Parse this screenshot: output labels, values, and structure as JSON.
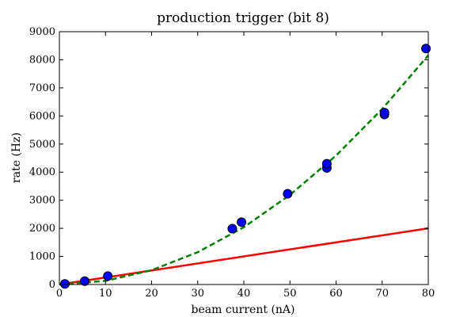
{
  "chart_data": {
    "type": "scatter",
    "title": "production trigger (bit 8)",
    "xlabel": "beam current (nA)",
    "ylabel": "rate (Hz)",
    "xlim": [
      0,
      80
    ],
    "ylim": [
      0,
      9000
    ],
    "xticks": [
      0,
      10,
      20,
      30,
      40,
      50,
      60,
      70,
      80
    ],
    "yticks": [
      0,
      1000,
      2000,
      3000,
      4000,
      5000,
      6000,
      7000,
      8000,
      9000
    ],
    "grid": false,
    "series": [
      {
        "kind": "scatter",
        "color": "#0000ff",
        "points": [
          {
            "x": 1.2,
            "y": 20
          },
          {
            "x": 5.5,
            "y": 120
          },
          {
            "x": 10.5,
            "y": 300
          },
          {
            "x": 37.5,
            "y": 1990
          },
          {
            "x": 39.5,
            "y": 2220
          },
          {
            "x": 49.5,
            "y": 3230
          },
          {
            "x": 58.0,
            "y": 4150
          },
          {
            "x": 58.0,
            "y": 4300
          },
          {
            "x": 70.5,
            "y": 6050
          },
          {
            "x": 70.5,
            "y": 6120
          },
          {
            "x": 79.5,
            "y": 8400
          }
        ]
      },
      {
        "kind": "line",
        "color": "#ff0000",
        "style": "solid",
        "points": [
          {
            "x": 0,
            "y": 0
          },
          {
            "x": 80,
            "y": 2000
          }
        ]
      },
      {
        "kind": "line",
        "color": "#008000",
        "style": "dashed",
        "points": [
          {
            "x": 0,
            "y": 0
          },
          {
            "x": 10,
            "y": 130
          },
          {
            "x": 20,
            "y": 510
          },
          {
            "x": 30,
            "y": 1150
          },
          {
            "x": 40,
            "y": 2040
          },
          {
            "x": 50,
            "y": 3190
          },
          {
            "x": 60,
            "y": 4590
          },
          {
            "x": 70,
            "y": 6250
          },
          {
            "x": 80,
            "y": 8160
          }
        ]
      }
    ]
  }
}
